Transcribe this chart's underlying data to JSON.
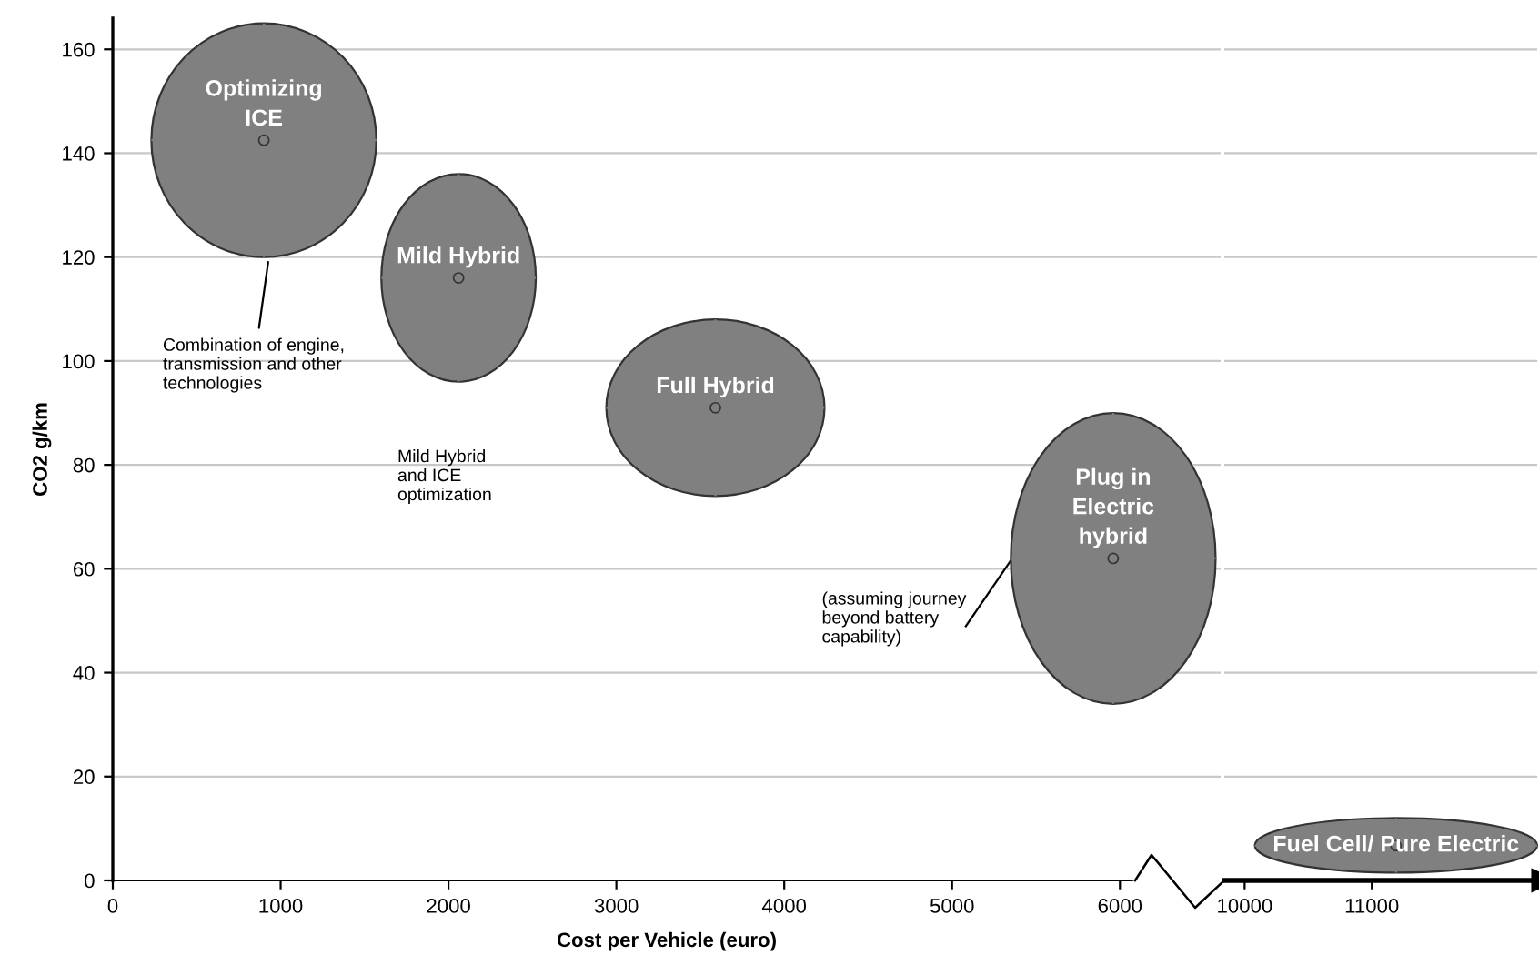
{
  "chart_data": [
    {
      "type": "scatter",
      "xlabel": "Cost per Vehicle (euro)",
      "ylabel": "CO2 g/km",
      "xlim": [
        0,
        6600
      ],
      "ylim": [
        0,
        166
      ],
      "xticks": [
        0,
        1000,
        2000,
        3000,
        4000,
        5000,
        6000
      ],
      "yticks": [
        0,
        20,
        40,
        60,
        80,
        100,
        120,
        140,
        160
      ],
      "grid": "y",
      "series": [
        {
          "name": "Optimizing\nICE",
          "color": "#808080",
          "x": [
            900
          ],
          "values": [
            142.5
          ],
          "xerrors": [
            [
              230,
              1570
            ]
          ],
          "errors": [
            [
              120,
              165
            ]
          ]
        },
        {
          "name": "Mild Hybrid",
          "color": "#808080",
          "x": [
            2060
          ],
          "values": [
            116
          ],
          "xerrors": [
            [
              1600,
              2520
            ]
          ],
          "errors": [
            [
              96,
              136
            ]
          ]
        },
        {
          "name": "Full Hybrid",
          "color": "#808080",
          "x": [
            3590
          ],
          "values": [
            91
          ],
          "xerrors": [
            [
              2940,
              4240
            ]
          ],
          "errors": [
            [
              74,
              108
            ]
          ]
        },
        {
          "name": "Plug in\nElectric\nhybrid",
          "color": "#808080",
          "x": [
            5960
          ],
          "values": [
            62
          ],
          "xerrors": [
            [
              5350,
              6570
            ]
          ],
          "errors": [
            [
              34,
              90
            ]
          ]
        }
      ],
      "annotations": [
        {
          "text": "Combination of engine,\ntransmission and other\ntechnologies",
          "x": 930,
          "y": 120
        },
        "Mild Hybrid\nand ICE\noptimization",
        "(assuming journey\nbeyond battery\ncapability)"
      ]
    },
    {
      "type": "scatter",
      "xlim": [
        9840,
        12300
      ],
      "xticks": [
        10000,
        11000
      ],
      "yticks": [
        0,
        20,
        40,
        60,
        80,
        100,
        120,
        140,
        160
      ],
      "tick_labels": "x",
      "grid": "y",
      "series": [
        {
          "name": "Fuel Cell/ Pure Electric",
          "color": "#808080",
          "x": [
            11190
          ],
          "values": [
            6.7
          ],
          "xerrors": [
            [
              10080,
              12300
            ]
          ],
          "errors": [
            [
              1.5,
              12
            ]
          ]
        }
      ]
    }
  ]
}
